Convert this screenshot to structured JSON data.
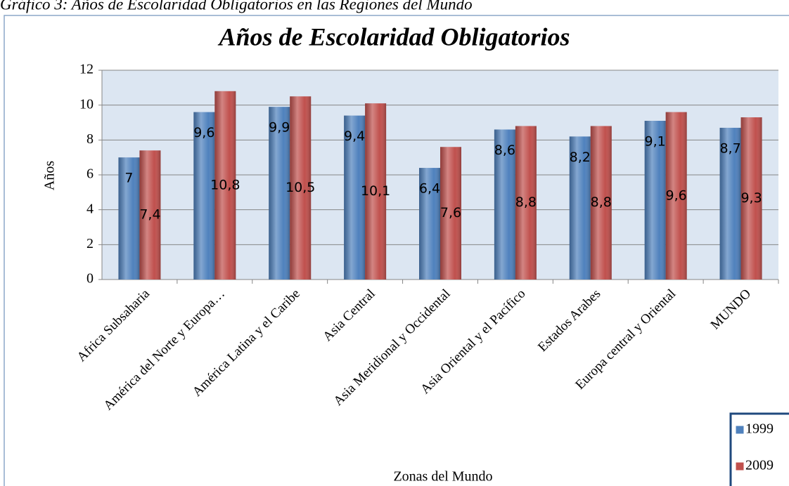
{
  "caption": "Gráfico 3: Años de Escolaridad Obligatorios en las Regiones del Mundo",
  "chart_data": {
    "type": "bar",
    "title": "Años de Escolaridad Obligatorios",
    "x_label": "Zonas del Mundo",
    "y_label": "Años",
    "categories": [
      "Africa Subsaharia",
      "América del Norte y Europa…",
      "América Latina y el Caribe",
      "Asia Central",
      "Asia Meridional y Occidental",
      "Asia Oriental y el Pacífico",
      "Estados Arabes",
      "Europa central y Oriental",
      "MUNDO"
    ],
    "series": [
      {
        "name": "1999",
        "color": "#4f81bd",
        "values": [
          7,
          9.6,
          9.9,
          9.4,
          6.4,
          8.6,
          8.2,
          9.1,
          8.7
        ],
        "value_labels": [
          "7",
          "9,6",
          "9,9",
          "9,4",
          "6,4",
          "8,6",
          "8,2",
          "9,1",
          "8,7"
        ]
      },
      {
        "name": "2009",
        "color": "#c0504d",
        "values": [
          7.4,
          10.8,
          10.5,
          10.1,
          7.6,
          8.8,
          8.8,
          9.6,
          9.3
        ],
        "value_labels": [
          "7,4",
          "10,8",
          "10,5",
          "10,1",
          "7,6",
          "8,8",
          "8,8",
          "9,6",
          "9,3"
        ]
      }
    ],
    "ylim": [
      0,
      12
    ],
    "yticks": [
      0,
      2,
      4,
      6,
      8,
      10,
      12
    ],
    "grid": true,
    "legend": "lower right"
  }
}
